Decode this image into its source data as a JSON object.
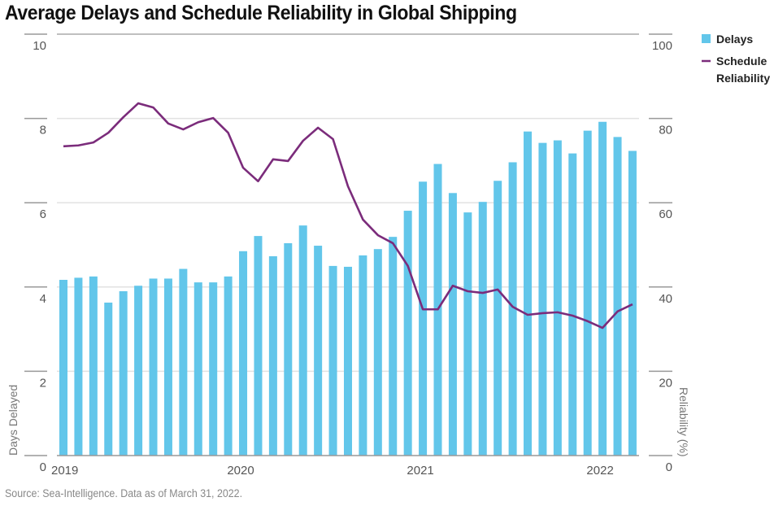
{
  "chart_data": {
    "type": "bar",
    "title": "Average Delays and Schedule Reliability in Global Shipping",
    "source": "Source: Sea-Intelligence. Data as of March 31, 2022.",
    "x": [
      "2019-01",
      "2019-02",
      "2019-03",
      "2019-04",
      "2019-05",
      "2019-06",
      "2019-07",
      "2019-08",
      "2019-09",
      "2019-10",
      "2019-11",
      "2019-12",
      "2020-01",
      "2020-02",
      "2020-03",
      "2020-04",
      "2020-05",
      "2020-06",
      "2020-07",
      "2020-08",
      "2020-09",
      "2020-10",
      "2020-11",
      "2020-12",
      "2021-01",
      "2021-02",
      "2021-03",
      "2021-04",
      "2021-05",
      "2021-06",
      "2021-07",
      "2021-08",
      "2021-09",
      "2021-10",
      "2021-11",
      "2021-12",
      "2022-01",
      "2022-02",
      "2022-03"
    ],
    "xticks": [
      {
        "label": "2019",
        "index": 0
      },
      {
        "label": "2020",
        "index": 12
      },
      {
        "label": "2021",
        "index": 24
      },
      {
        "label": "2022",
        "index": 36
      }
    ],
    "series": [
      {
        "name": "Delays",
        "type": "bar",
        "axis": "left",
        "color": "#62C6EA",
        "values": [
          4.17,
          4.22,
          4.25,
          3.63,
          3.9,
          4.03,
          4.2,
          4.2,
          4.43,
          4.11,
          4.11,
          4.25,
          4.85,
          5.21,
          4.73,
          5.04,
          5.46,
          4.98,
          4.5,
          4.48,
          4.75,
          4.9,
          5.19,
          5.81,
          6.5,
          6.92,
          6.23,
          5.77,
          6.02,
          6.52,
          6.96,
          7.69,
          7.42,
          7.48,
          7.17,
          7.71,
          7.92,
          7.56,
          7.23
        ]
      },
      {
        "name": "Schedule Reliability",
        "type": "line",
        "axis": "right",
        "color": "#7B2C7B",
        "values": [
          73.4,
          73.6,
          74.3,
          76.6,
          80.3,
          83.6,
          82.6,
          78.8,
          77.4,
          79.1,
          80.1,
          76.6,
          68.3,
          65.1,
          70.3,
          69.9,
          74.7,
          77.8,
          75.1,
          63.9,
          56.0,
          52.3,
          50.4,
          45.0,
          34.7,
          34.7,
          40.3,
          39.0,
          38.6,
          39.4,
          35.3,
          33.4,
          33.8,
          34.0,
          33.2,
          31.9,
          30.3,
          34.2,
          35.9
        ]
      }
    ],
    "ylabel": "Days Delayed",
    "ylim": [
      0,
      10
    ],
    "yticks": [
      0,
      2,
      4,
      6,
      8,
      10
    ],
    "y2label": "Reliability (%)",
    "y2lim": [
      0,
      100
    ],
    "y2ticks": [
      0,
      20,
      40,
      60,
      80,
      100
    ],
    "grid": true,
    "legend": {
      "placement": "top-right",
      "entries": [
        {
          "label": "Delays",
          "kind": "swatch"
        },
        {
          "label": "Schedule Reliability",
          "kind": "line",
          "lines": [
            "Schedule",
            "Reliability"
          ]
        }
      ]
    }
  }
}
